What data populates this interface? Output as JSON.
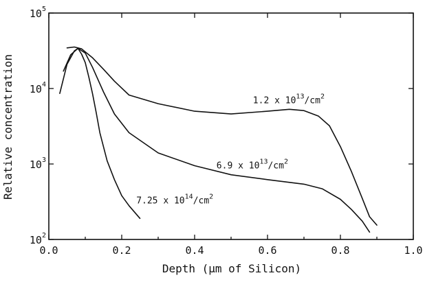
{
  "chart_data": {
    "type": "line",
    "title": "",
    "xlabel": "Depth (µm of Silicon)",
    "ylabel": "Relative concentration",
    "xlim": [
      0,
      1.0
    ],
    "ylim": [
      100,
      100000
    ],
    "yscale": "log",
    "grid": false,
    "x_ticks": [
      {
        "value": 0.0,
        "label": "0.0"
      },
      {
        "value": 0.2,
        "label": "0.2"
      },
      {
        "value": 0.4,
        "label": "0.4"
      },
      {
        "value": 0.6,
        "label": "0.6"
      },
      {
        "value": 0.8,
        "label": "0.8"
      },
      {
        "value": 1.0,
        "label": "1.0"
      }
    ],
    "y_ticks": [
      {
        "value": 100,
        "base": "10",
        "exp": "2"
      },
      {
        "value": 1000,
        "base": "10",
        "exp": "3"
      },
      {
        "value": 10000,
        "base": "10",
        "exp": "4"
      },
      {
        "value": 100000,
        "base": "10",
        "exp": "5"
      }
    ],
    "series": [
      {
        "x": [
          0.05,
          0.07,
          0.09,
          0.12,
          0.15,
          0.18,
          0.22,
          0.3,
          0.4,
          0.5,
          0.6,
          0.66,
          0.7,
          0.74,
          0.77,
          0.8,
          0.83,
          0.86,
          0.88,
          0.9
        ],
        "y": [
          34500,
          35500,
          33500,
          25500,
          18000,
          12500,
          8200,
          6300,
          5000,
          4600,
          5000,
          5300,
          5100,
          4300,
          3200,
          1700,
          800,
          350,
          200,
          155
        ]
      },
      {
        "x": [
          0.04,
          0.06,
          0.08,
          0.1,
          0.12,
          0.15,
          0.18,
          0.22,
          0.3,
          0.4,
          0.5,
          0.6,
          0.7,
          0.75,
          0.8,
          0.83,
          0.86,
          0.88
        ],
        "y": [
          17000,
          28000,
          34000,
          29500,
          19000,
          9000,
          4600,
          2600,
          1400,
          950,
          720,
          620,
          540,
          470,
          340,
          250,
          175,
          125
        ]
      },
      {
        "x": [
          0.03,
          0.05,
          0.07,
          0.08,
          0.09,
          0.1,
          0.11,
          0.12,
          0.13,
          0.14,
          0.16,
          0.18,
          0.2,
          0.22,
          0.25
        ],
        "y": [
          8600,
          21000,
          31500,
          34000,
          28500,
          22000,
          14000,
          8500,
          4800,
          2600,
          1100,
          620,
          380,
          280,
          190
        ]
      }
    ],
    "annotations": [
      {
        "mantissa": "1.2 x 10",
        "exp": "13",
        "unit": "/cm",
        "unit_exp": "2",
        "x": 0.56,
        "y": 6400
      },
      {
        "mantissa": "6.9 x 10",
        "exp": "13",
        "unit": "/cm",
        "unit_exp": "2",
        "x": 0.46,
        "y": 870
      },
      {
        "mantissa": "7.25 x 10",
        "exp": "14",
        "unit": "/cm",
        "unit_exp": "2",
        "x": 0.24,
        "y": 300
      }
    ]
  }
}
